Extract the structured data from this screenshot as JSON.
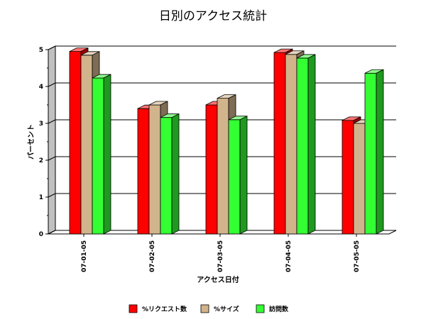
{
  "chart_data": {
    "type": "bar",
    "title": "日別のアクセス統計",
    "xlabel": "アクセス日付",
    "ylabel": "パーセント",
    "categories": [
      "07-01-05",
      "07-02-05",
      "07-03-05",
      "07-04-05",
      "07-05-05"
    ],
    "series": [
      {
        "name": "%リクエスト数",
        "color": "#ff0000",
        "values": [
          4.95,
          3.4,
          3.5,
          4.92,
          3.08
        ]
      },
      {
        "name": "%サイズ",
        "color": "#d2b48c",
        "values": [
          4.85,
          3.5,
          3.68,
          4.87,
          3.0
        ]
      },
      {
        "name": "訪問数",
        "color": "#33ff33",
        "values": [
          4.23,
          3.16,
          3.1,
          4.77,
          4.36
        ]
      }
    ],
    "ylim": [
      0,
      5
    ],
    "yticks": [
      "0",
      "1",
      "2",
      "3",
      "4",
      "5"
    ],
    "grid": true,
    "legend": "bottom",
    "style": "3d"
  }
}
